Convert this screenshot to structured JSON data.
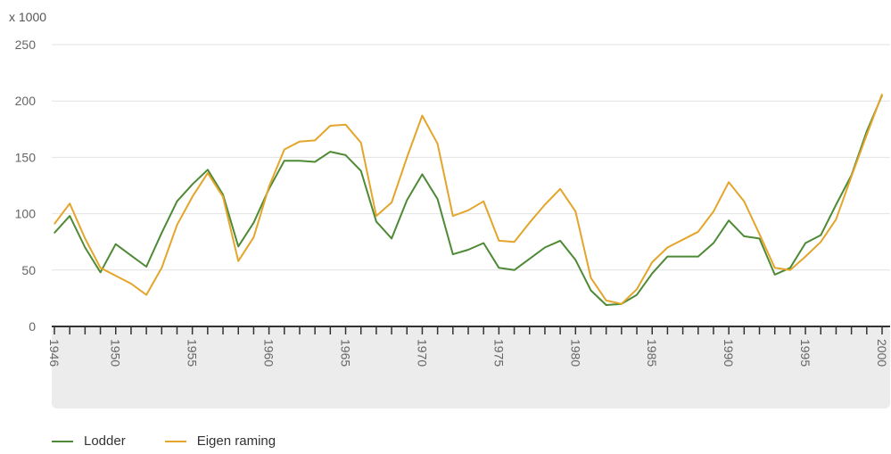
{
  "chart_data": {
    "type": "line",
    "unit_label": "x 1000",
    "title": "",
    "xlabel": "",
    "ylabel": "",
    "ylim": [
      0,
      250
    ],
    "yticks": [
      0,
      50,
      100,
      150,
      200,
      250
    ],
    "xlim": [
      1946,
      2000
    ],
    "xtick_labels": [
      1946,
      1950,
      1955,
      1960,
      1965,
      1970,
      1975,
      1980,
      1985,
      1990,
      1995,
      2000
    ],
    "grid": "horizontal",
    "legend_position": "bottom-left",
    "x": [
      1946,
      1947,
      1948,
      1949,
      1950,
      1951,
      1952,
      1953,
      1954,
      1955,
      1956,
      1957,
      1958,
      1959,
      1960,
      1961,
      1962,
      1963,
      1964,
      1965,
      1966,
      1967,
      1968,
      1969,
      1970,
      1971,
      1972,
      1973,
      1974,
      1975,
      1976,
      1977,
      1978,
      1979,
      1980,
      1981,
      1982,
      1983,
      1984,
      1985,
      1986,
      1987,
      1988,
      1989,
      1990,
      1991,
      1992,
      1993,
      1994,
      1995,
      1996,
      1997,
      1998,
      1999,
      2000
    ],
    "series": [
      {
        "name": "Lodder",
        "color": "#4e8a36",
        "values": [
          83,
          98,
          70,
          48,
          73,
          63,
          53,
          83,
          111,
          126,
          139,
          117,
          71,
          92,
          122,
          147,
          147,
          146,
          155,
          152,
          138,
          93,
          78,
          112,
          135,
          113,
          64,
          68,
          74,
          52,
          50,
          60,
          70,
          76,
          59,
          32,
          19,
          20,
          28,
          47,
          62,
          62,
          62,
          74,
          94,
          80,
          78,
          46,
          52,
          74,
          81,
          108,
          134,
          173,
          205
        ]
      },
      {
        "name": "Eigen raming",
        "color": "#e3a52b",
        "values": [
          91,
          109,
          78,
          52,
          45,
          38,
          28,
          52,
          90,
          115,
          136,
          115,
          58,
          79,
          124,
          157,
          164,
          165,
          178,
          179,
          163,
          98,
          110,
          150,
          187,
          162,
          98,
          103,
          111,
          76,
          75,
          92,
          108,
          122,
          102,
          43,
          23,
          20,
          33,
          57,
          70,
          77,
          84,
          102,
          128,
          111,
          82,
          52,
          50,
          62,
          75,
          95,
          133,
          170,
          206
        ]
      }
    ]
  },
  "colors": {
    "grid": "#e2e2e2",
    "axis": "#333333",
    "xband": "#ececec"
  }
}
